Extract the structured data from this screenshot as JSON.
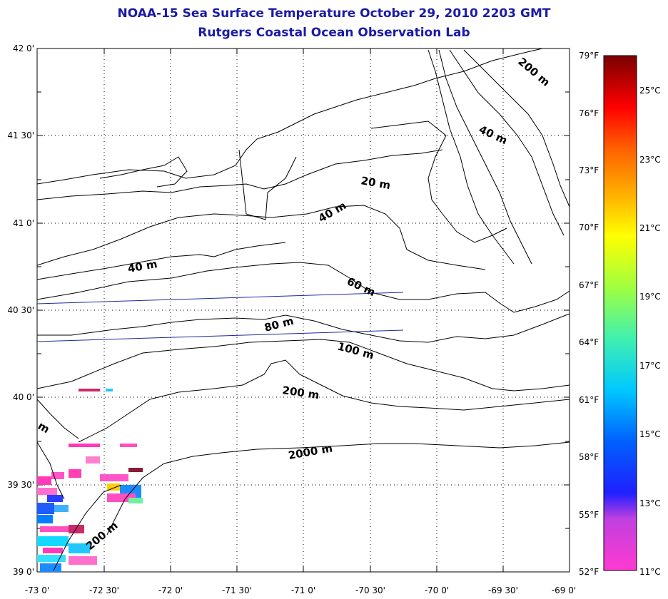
{
  "title": "NOAA-15 Sea Surface Temperature October 29, 2010 2203 GMT",
  "subtitle": "Rutgers Coastal Ocean Observation Lab",
  "map": {
    "lon_range": [
      -73.0,
      -69.0
    ],
    "lat_range": [
      39.0,
      42.0
    ],
    "x_ticks": [
      "-73 0'",
      "-72 30'",
      "-72 0'",
      "-71 30'",
      "-71 0'",
      "-70 30'",
      "-70 0'",
      "-69 30'",
      "-69 0'"
    ],
    "y_ticks": [
      "42 0'",
      "41 30'",
      "41 0'",
      "40 30'",
      "40 0'",
      "39 30'",
      "39 0'"
    ],
    "grid": "dotted",
    "contour_labels": [
      {
        "text": "20 m"
      },
      {
        "text": "40 m"
      },
      {
        "text": "40 m"
      },
      {
        "text": "40 m"
      },
      {
        "text": "200 m"
      },
      {
        "text": "60 m"
      },
      {
        "text": "80 m"
      },
      {
        "text": "100 m"
      },
      {
        "text": "200 m"
      },
      {
        "text": "2000 m"
      },
      {
        "text": "200 m"
      },
      {
        "text": "m"
      }
    ]
  },
  "colorbar": {
    "fahrenheit": [
      "79°F",
      "76°F",
      "73°F",
      "70°F",
      "67°F",
      "64°F",
      "61°F",
      "58°F",
      "55°F",
      "52°F"
    ],
    "celsius": [
      "25°C",
      "23°C",
      "21°C",
      "19°C",
      "17°C",
      "15°C",
      "13°C",
      "11°C"
    ],
    "range_f": [
      52,
      79
    ],
    "range_c": [
      11,
      26
    ]
  },
  "colors": {
    "title": "#1a1aa8",
    "track_lines": "#1a2a9a"
  }
}
